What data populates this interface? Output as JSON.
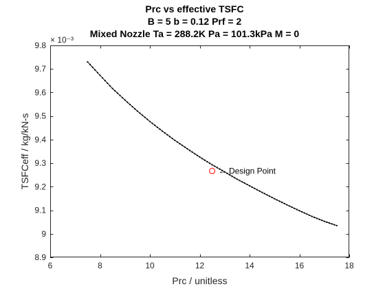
{
  "chart_data": {
    "type": "line",
    "title": [
      "Prc vs effective TSFC",
      "B = 5 b = 0.12 Prf = 2",
      "Mixed Nozzle Ta = 288.2K Pa = 101.3kPa M = 0"
    ],
    "xlabel": "Prc / unitless",
    "ylabel": "TSFCeff / kg/kN-s",
    "y_exponent_label": "× 10⁻³",
    "xlim": [
      6,
      18
    ],
    "ylim": [
      8.9,
      9.8
    ],
    "x_ticks": [
      6,
      8,
      10,
      12,
      14,
      16,
      18
    ],
    "x_tick_labels": [
      "6",
      "8",
      "10",
      "12",
      "14",
      "16",
      "18"
    ],
    "y_ticks": [
      8.9,
      9.0,
      9.1,
      9.2,
      9.3,
      9.4,
      9.5,
      9.6,
      9.7,
      9.8
    ],
    "y_tick_labels": [
      "8.9",
      "9",
      "9.1",
      "9.2",
      "9.3",
      "9.4",
      "9.5",
      "9.6",
      "9.7",
      "9.8"
    ],
    "grid": false,
    "box": true,
    "series": [
      {
        "color": "#000000",
        "marker": "dot",
        "x": [
          7.5,
          8,
          8.5,
          9,
          9.5,
          10,
          10.5,
          11,
          11.5,
          12,
          12.5,
          13,
          13.5,
          14,
          14.5,
          15,
          15.5,
          16,
          16.5,
          17,
          17.5
        ],
        "y": [
          9.73,
          9.673,
          9.617,
          9.568,
          9.521,
          9.477,
          9.436,
          9.397,
          9.361,
          9.326,
          9.293,
          9.263,
          9.232,
          9.204,
          9.176,
          9.149,
          9.123,
          9.098,
          9.074,
          9.053,
          9.035
        ]
      }
    ],
    "annotations": [
      {
        "marker": "circle",
        "color": "#ff0000",
        "x": 12.5,
        "y": 9.267,
        "text": "← Design Point"
      }
    ]
  }
}
